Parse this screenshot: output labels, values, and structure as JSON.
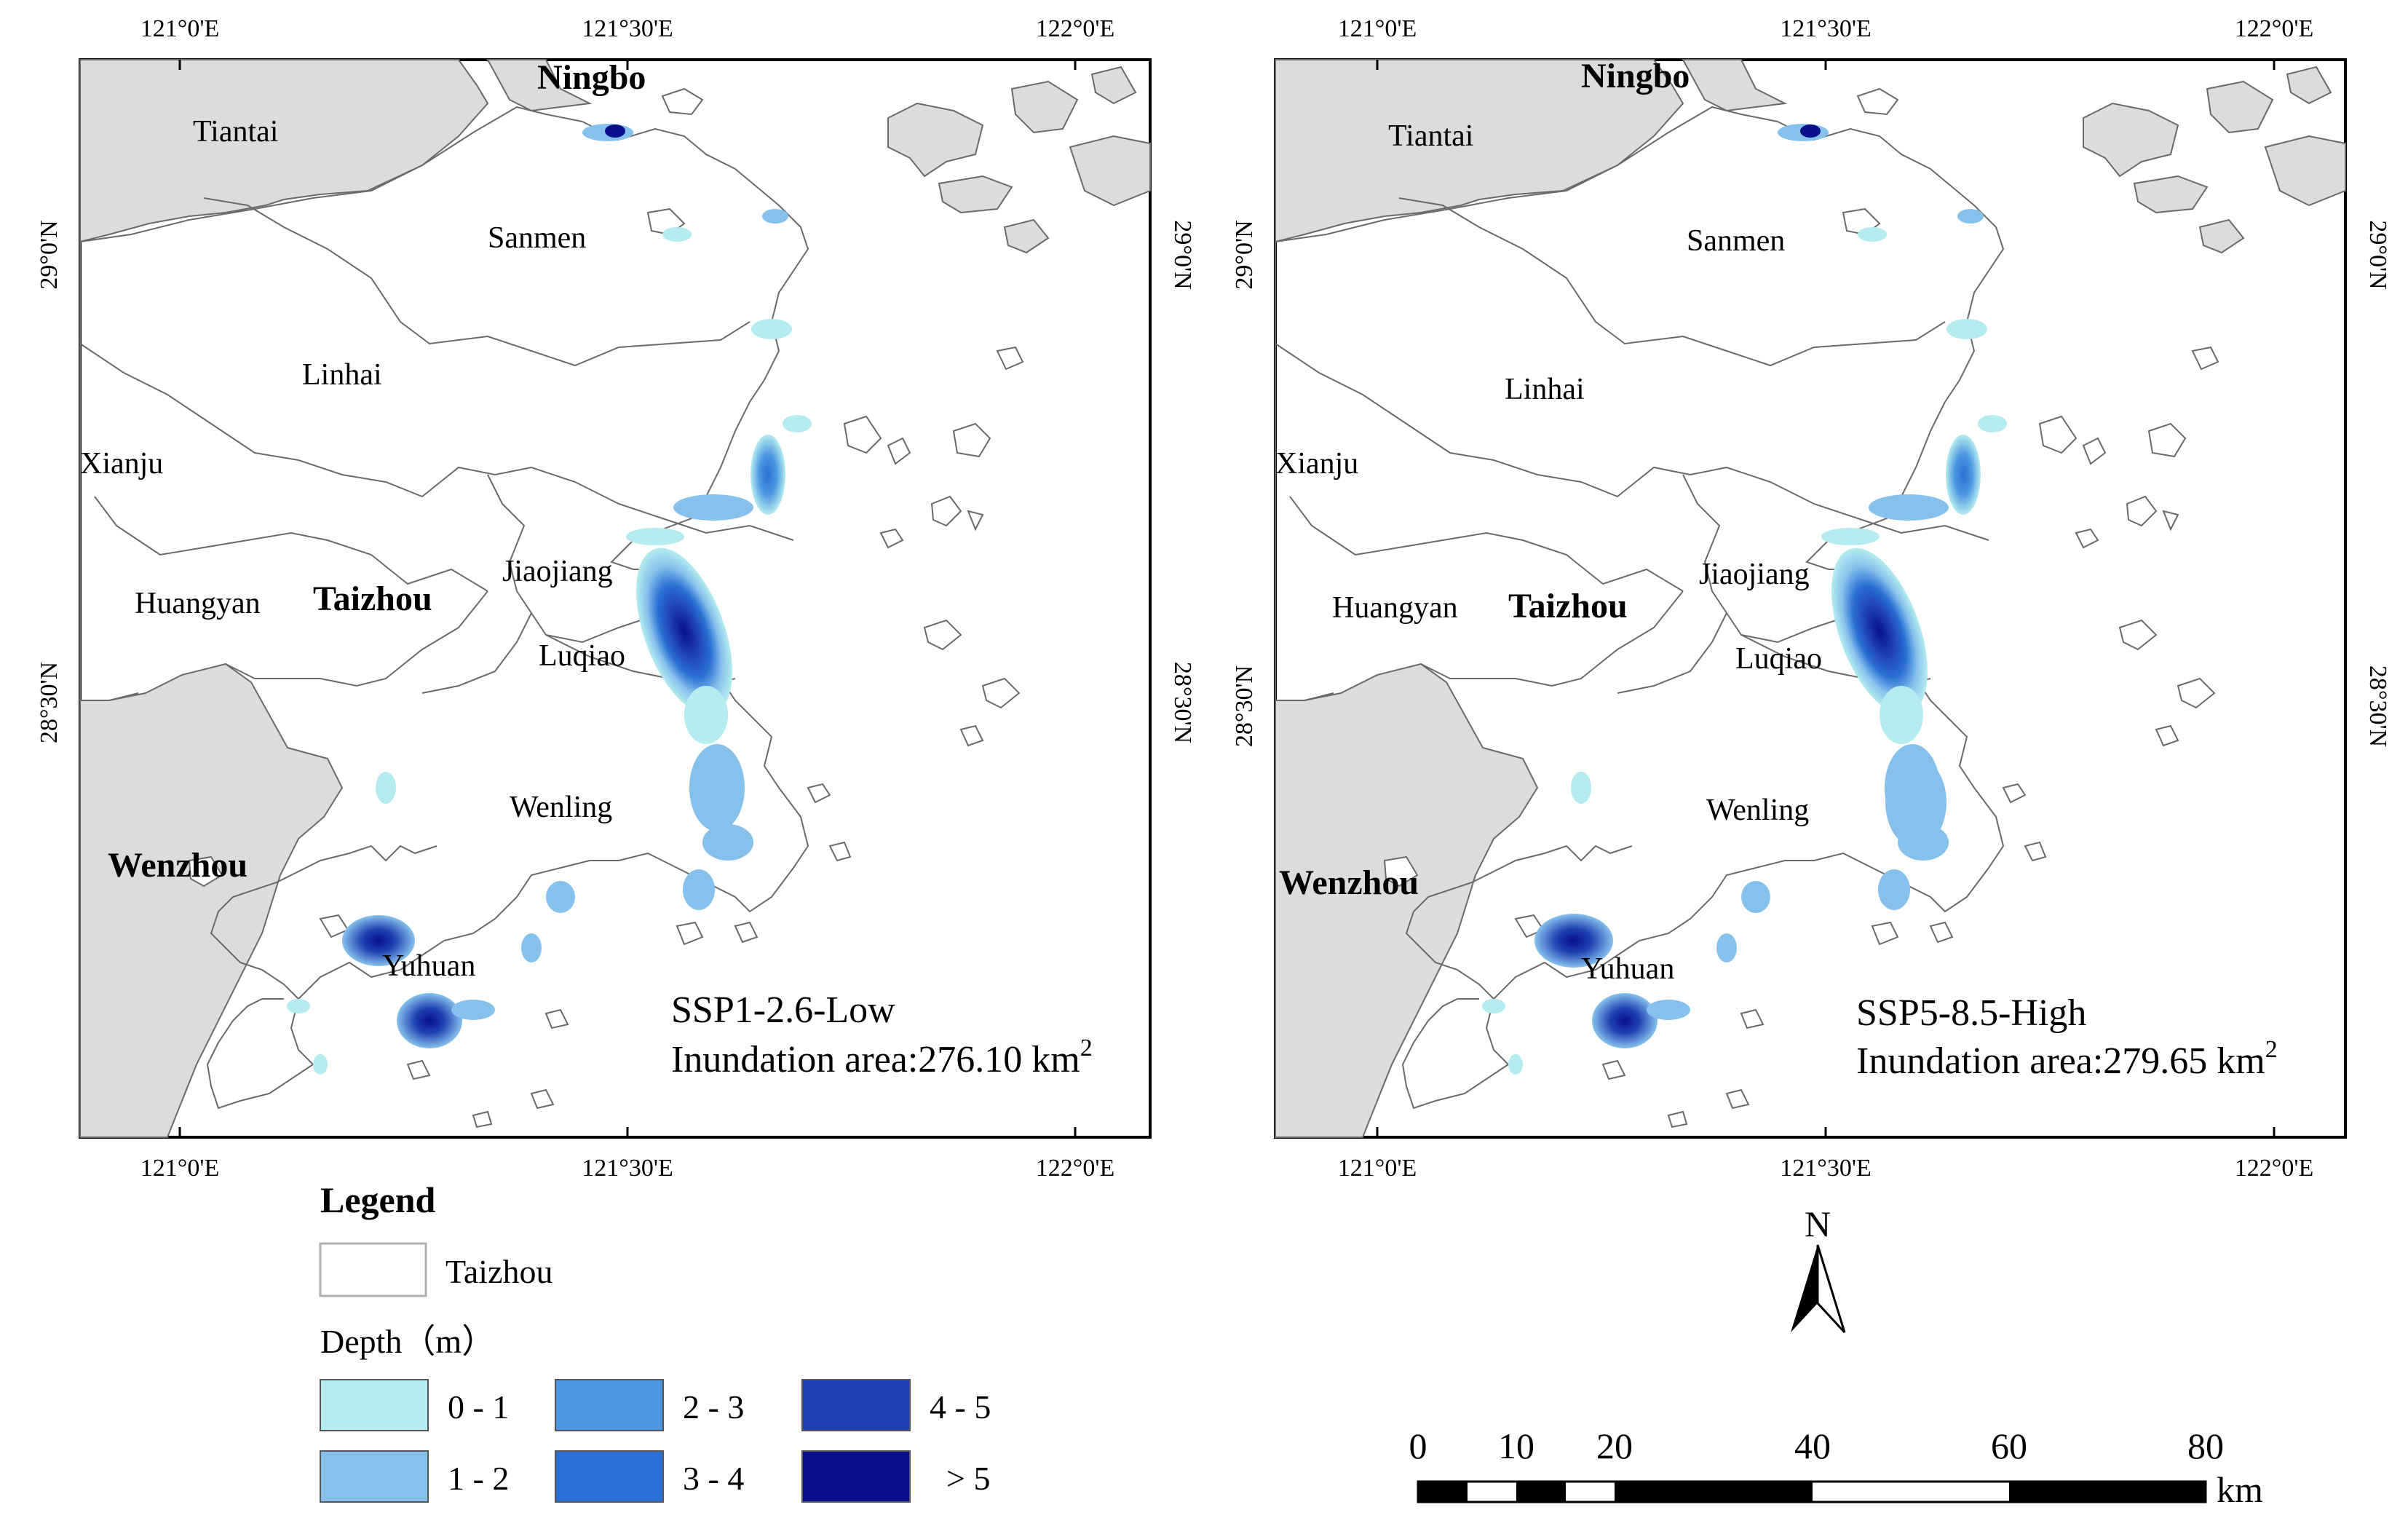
{
  "maps": [
    {
      "scenario": "SSP1-2.6-Low",
      "area_label": "Inundation area:",
      "area_value": "276.10",
      "area_unit": "km",
      "area_exp": "2"
    },
    {
      "scenario": "SSP5-8.5-High",
      "area_label": "Inundation area:",
      "area_value": "279.65",
      "area_unit": "km",
      "area_exp": "2"
    }
  ],
  "longitude_ticks": [
    "121°0'E",
    "121°30'E",
    "122°0'E"
  ],
  "latitude_ticks": [
    "29°0'N",
    "28°30'N"
  ],
  "places": {
    "tiantai": "Tiantai",
    "sanmen": "Sanmen",
    "linhai": "Linhai",
    "xianju": "Xianju",
    "huangyan": "Huangyan",
    "jiaojiang": "Jiaojiang",
    "luqiao": "Luqiao",
    "wenling": "Wenling",
    "yuhuan": "Yuhuan"
  },
  "cities": {
    "ningbo": "Ningbo",
    "taizhou": "Taizhou",
    "wenzhou": "Wenzhou"
  },
  "legend": {
    "title": "Legend",
    "region_label": "Taizhou",
    "depth_title": "Depth（m）",
    "classes": [
      {
        "label": "0 - 1",
        "color": "#b4ecef"
      },
      {
        "label": "1 - 2",
        "color": "#86c1ec"
      },
      {
        "label": "2 - 3",
        "color": "#4d97e2"
      },
      {
        "label": "3 - 4",
        "color": "#2a6fd4"
      },
      {
        "label": "4 - 5",
        "color": "#1f42b3"
      },
      {
        "label": "> 5",
        "color": "#0a0f8a"
      }
    ]
  },
  "north_arrow": "N",
  "scale_bar": {
    "labels": [
      "0",
      "10",
      "20",
      "40",
      "60",
      "80"
    ],
    "unit": "km"
  },
  "colors": {
    "land_outside": "#dcdcdc",
    "study_area": "#ffffff",
    "boundary": "#6a6a6a"
  }
}
